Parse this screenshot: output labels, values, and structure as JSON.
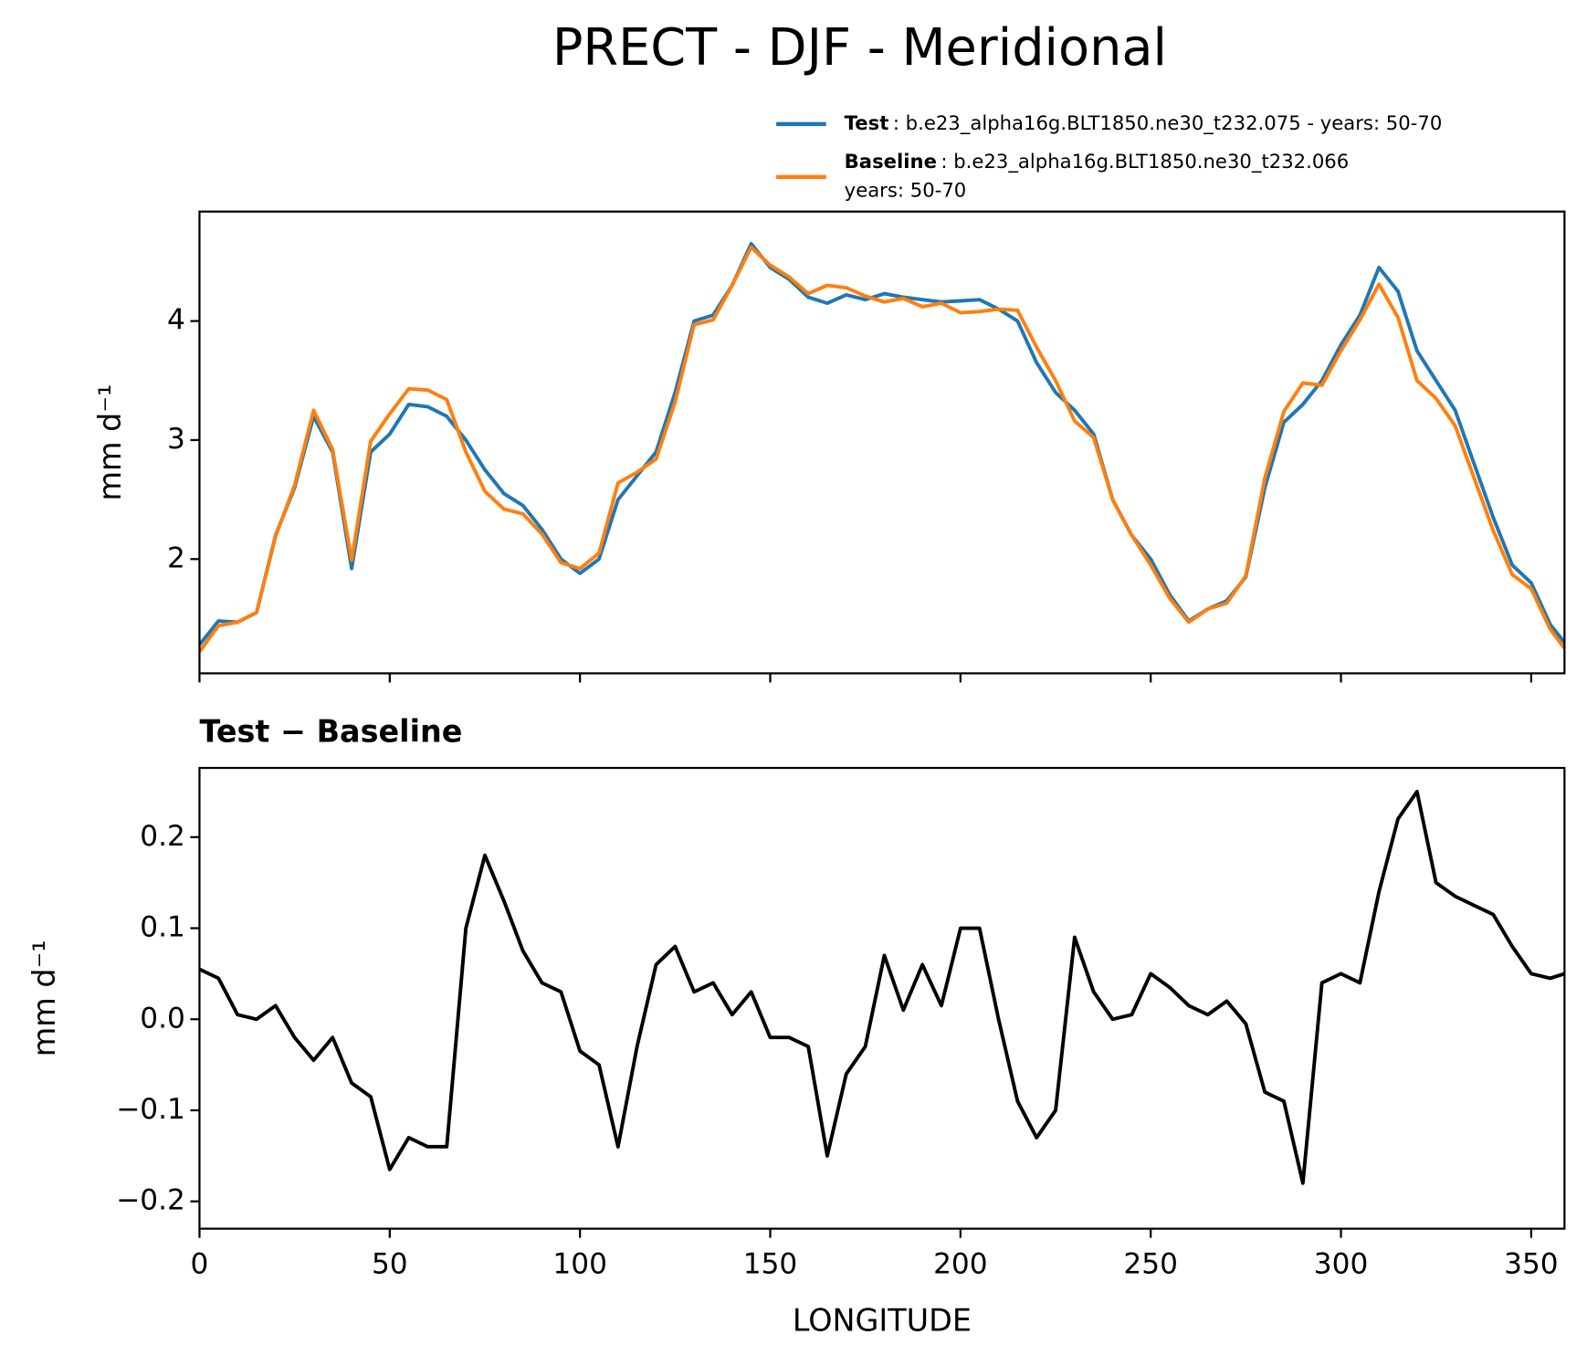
{
  "title": "PRECT - DJF - Meridional",
  "chart_data": [
    {
      "type": "line",
      "ylabel": "mm d⁻¹",
      "x": [
        0,
        5,
        10,
        15,
        20,
        25,
        30,
        35,
        40,
        45,
        50,
        55,
        60,
        65,
        70,
        75,
        80,
        85,
        90,
        95,
        100,
        105,
        110,
        115,
        120,
        125,
        130,
        135,
        140,
        145,
        150,
        155,
        160,
        165,
        170,
        175,
        180,
        185,
        190,
        195,
        200,
        205,
        210,
        215,
        220,
        225,
        230,
        235,
        240,
        245,
        250,
        255,
        260,
        265,
        270,
        275,
        280,
        285,
        290,
        295,
        300,
        305,
        310,
        315,
        320,
        325,
        330,
        335,
        340,
        345,
        350,
        355,
        358.75
      ],
      "series": [
        {
          "name": "Test",
          "description": [
            ": b.e23_alpha16g.BLT1850.ne30_t232.075 - years: 50-70"
          ],
          "color": "#1f77b4",
          "values": [
            1.28,
            1.48,
            1.47,
            1.55,
            2.2,
            2.6,
            3.2,
            2.9,
            1.92,
            2.9,
            3.05,
            3.3,
            3.28,
            3.2,
            3.0,
            2.75,
            2.55,
            2.45,
            2.25,
            2.0,
            1.88,
            2.0,
            2.5,
            2.7,
            2.9,
            3.4,
            4.0,
            4.05,
            4.3,
            4.65,
            4.45,
            4.35,
            4.2,
            4.15,
            4.22,
            4.18,
            4.23,
            4.2,
            4.18,
            4.16,
            4.17,
            4.18,
            4.1,
            4.0,
            3.65,
            3.4,
            3.25,
            3.05,
            2.5,
            2.2,
            2.0,
            1.7,
            1.48,
            1.58,
            1.65,
            1.85,
            2.6,
            3.15,
            3.3,
            3.5,
            3.8,
            4.05,
            4.45,
            4.25,
            3.75,
            3.5,
            3.25,
            2.8,
            2.35,
            1.95,
            1.8,
            1.45,
            1.3
          ]
        },
        {
          "name": "Baseline",
          "description": [
            ": b.e23_alpha16g.BLT1850.ne30_t232.066",
            "years: 50-70"
          ],
          "color": "#ff7f0e",
          "values": [
            1.22,
            1.44,
            1.47,
            1.55,
            2.19,
            2.62,
            3.25,
            2.92,
            1.99,
            2.99,
            3.22,
            3.43,
            3.42,
            3.34,
            2.9,
            2.57,
            2.42,
            2.38,
            2.21,
            1.97,
            1.92,
            2.05,
            2.64,
            2.73,
            2.84,
            3.32,
            3.97,
            4.01,
            4.3,
            4.62,
            4.47,
            4.37,
            4.23,
            4.3,
            4.28,
            4.21,
            4.16,
            4.19,
            4.12,
            4.15,
            4.07,
            4.08,
            4.1,
            4.09,
            3.78,
            3.5,
            3.16,
            3.02,
            2.5,
            2.2,
            1.95,
            1.67,
            1.47,
            1.58,
            1.63,
            1.86,
            2.68,
            3.24,
            3.48,
            3.46,
            3.75,
            4.01,
            4.31,
            4.03,
            3.5,
            3.35,
            3.12,
            2.68,
            2.24,
            1.87,
            1.75,
            1.41,
            1.25
          ]
        }
      ],
      "xlim": [
        0,
        358.75
      ],
      "xticks": [
        0,
        50,
        100,
        150,
        200,
        250,
        300,
        350
      ],
      "show_xticklabels": false,
      "ylim": [
        1.04,
        4.92
      ],
      "yticks": [
        2,
        3,
        4
      ],
      "legend": "above-right"
    },
    {
      "type": "line",
      "title": "Test − Baseline",
      "xlabel": "LONGITUDE",
      "ylabel": "mm d⁻¹",
      "x": [
        0,
        5,
        10,
        15,
        20,
        25,
        30,
        35,
        40,
        45,
        50,
        55,
        60,
        65,
        70,
        75,
        80,
        85,
        90,
        95,
        100,
        105,
        110,
        115,
        120,
        125,
        130,
        135,
        140,
        145,
        150,
        155,
        160,
        165,
        170,
        175,
        180,
        185,
        190,
        195,
        200,
        205,
        210,
        215,
        220,
        225,
        230,
        235,
        240,
        245,
        250,
        255,
        260,
        265,
        270,
        275,
        280,
        285,
        290,
        295,
        300,
        305,
        310,
        315,
        320,
        325,
        330,
        335,
        340,
        345,
        350,
        355,
        358.75
      ],
      "values": [
        0.055,
        0.045,
        0.005,
        0.0,
        0.015,
        -0.02,
        -0.045,
        -0.02,
        -0.07,
        -0.085,
        -0.165,
        -0.13,
        -0.14,
        -0.14,
        0.1,
        0.18,
        0.13,
        0.075,
        0.04,
        0.03,
        -0.035,
        -0.05,
        -0.14,
        -0.03,
        0.06,
        0.08,
        0.03,
        0.04,
        0.005,
        0.03,
        -0.02,
        -0.02,
        -0.03,
        -0.15,
        -0.06,
        -0.03,
        0.07,
        0.01,
        0.06,
        0.015,
        0.1,
        0.1,
        0.0,
        -0.09,
        -0.13,
        -0.1,
        0.09,
        0.03,
        0.0,
        0.005,
        0.05,
        0.035,
        0.015,
        0.005,
        0.02,
        -0.005,
        -0.08,
        -0.09,
        -0.18,
        0.04,
        0.05,
        0.04,
        0.14,
        0.22,
        0.25,
        0.15,
        0.135,
        0.125,
        0.115,
        0.08,
        0.05,
        0.045,
        0.05
      ],
      "color": "#000000",
      "xlim": [
        0,
        358.75
      ],
      "xticks": [
        0,
        50,
        100,
        150,
        200,
        250,
        300,
        350
      ],
      "ylim": [
        -0.23,
        0.276
      ],
      "yticks": [
        {
          "value": -0.2,
          "label": "−0.2"
        },
        {
          "value": -0.1,
          "label": "−0.1"
        },
        {
          "value": 0,
          "label": "0.0"
        },
        0.1,
        0.2
      ]
    }
  ]
}
